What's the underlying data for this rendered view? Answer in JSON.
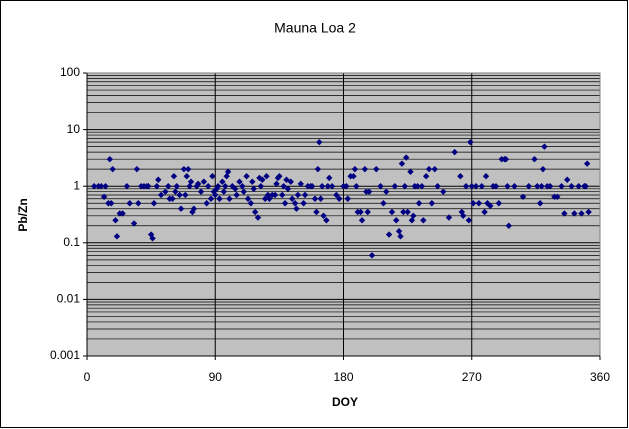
{
  "chart_data": {
    "type": "scatter",
    "title": "Mauna Loa 2",
    "x_label": "DOY",
    "y_label": "Pb/Zn",
    "xlim": [
      0,
      360
    ],
    "xticks": [
      0,
      90,
      180,
      270,
      360
    ],
    "ylim": [
      0.001,
      100
    ],
    "yticks": [
      0.001,
      0.01,
      0.1,
      1,
      10,
      100
    ],
    "log_y": true,
    "grid": true,
    "minor_grid": true,
    "series": [
      {
        "color": "#000080",
        "x": [
          5,
          8,
          10,
          12,
          13,
          15,
          16,
          17,
          18,
          20,
          21,
          23,
          25,
          28,
          30,
          33,
          35,
          36,
          38,
          40,
          42,
          43,
          45,
          46,
          47,
          49,
          50,
          52,
          55,
          57,
          58,
          60,
          61,
          62,
          63,
          65,
          66,
          68,
          69,
          70,
          71,
          72,
          73,
          74,
          75,
          77,
          78,
          80,
          82,
          84,
          85,
          87,
          88,
          89,
          90,
          91,
          92,
          93,
          95,
          96,
          97,
          98,
          99,
          100,
          102,
          104,
          105,
          107,
          109,
          110,
          112,
          113,
          115,
          116,
          117,
          118,
          120,
          121,
          122,
          123,
          125,
          126,
          127,
          128,
          130,
          132,
          133,
          134,
          135,
          137,
          138,
          139,
          140,
          141,
          143,
          144,
          146,
          147,
          148,
          150,
          152,
          153,
          155,
          157,
          158,
          160,
          161,
          162,
          163,
          164,
          165,
          166,
          168,
          169,
          170,
          172,
          175,
          177,
          180,
          182,
          183,
          185,
          187,
          188,
          189,
          190,
          192,
          193,
          195,
          196,
          197,
          198,
          200,
          203,
          206,
          208,
          210,
          212,
          214,
          216,
          217,
          219,
          220,
          221,
          222,
          223,
          224,
          225,
          227,
          228,
          229,
          230,
          232,
          233,
          235,
          236,
          238,
          240,
          242,
          244,
          246,
          250,
          254,
          258,
          262,
          263,
          264,
          266,
          268,
          269,
          270,
          271,
          273,
          275,
          277,
          279,
          280,
          281,
          283,
          285,
          287,
          289,
          291,
          293,
          294,
          295,
          296,
          300,
          306,
          310,
          314,
          316,
          318,
          319,
          320,
          321,
          323,
          325,
          328,
          330,
          333,
          335,
          337,
          340,
          342,
          345,
          347,
          349,
          350,
          351,
          352
        ],
        "values": [
          1,
          1,
          1,
          0.65,
          1,
          0.5,
          3,
          0.5,
          2,
          0.25,
          0.13,
          0.33,
          0.33,
          1,
          0.5,
          0.22,
          2,
          0.5,
          1,
          1,
          1,
          1,
          0.14,
          0.12,
          0.5,
          1,
          1.3,
          0.7,
          0.8,
          1,
          0.6,
          0.6,
          1.5,
          0.8,
          1,
          0.7,
          0.4,
          2,
          0.7,
          1.5,
          2,
          1,
          1.2,
          0.35,
          0.4,
          1,
          1.1,
          0.8,
          1.2,
          0.5,
          1,
          0.6,
          1.5,
          0.8,
          0.7,
          0.9,
          1,
          0.6,
          1.2,
          0.8,
          1,
          1.5,
          1.8,
          0.6,
          1,
          0.9,
          0.7,
          1.2,
          1,
          0.8,
          1.5,
          0.6,
          0.5,
          1.2,
          0.9,
          0.35,
          0.28,
          1.4,
          1,
          1.3,
          0.6,
          1.5,
          0.7,
          0.6,
          0.7,
          0.7,
          1.1,
          1.4,
          1.5,
          0.7,
          1,
          0.5,
          1.3,
          0.9,
          1.2,
          0.6,
          0.5,
          0.4,
          0.7,
          1.1,
          0.5,
          0.7,
          1,
          1,
          1,
          0.6,
          0.35,
          2,
          6,
          0.6,
          1,
          0.3,
          0.25,
          1,
          1.4,
          1,
          0.7,
          0.6,
          1,
          1,
          0.6,
          1.5,
          1.5,
          2,
          1,
          0.35,
          0.35,
          0.25,
          2,
          0.8,
          0.35,
          0.8,
          0.06,
          2,
          1,
          0.5,
          0.8,
          0.14,
          0.35,
          1,
          0.25,
          0.16,
          0.13,
          2.5,
          0.35,
          1,
          3.2,
          0.35,
          1.8,
          0.25,
          0.3,
          1,
          1,
          0.5,
          1,
          0.25,
          1.5,
          2,
          0.5,
          2,
          1,
          0.8,
          0.28,
          4,
          1.5,
          0.35,
          0.3,
          1,
          0.25,
          6,
          1,
          0.5,
          1,
          0.5,
          1,
          0.35,
          1.5,
          0.5,
          0.45,
          1,
          1,
          0.5,
          3,
          3,
          3,
          1,
          0.2,
          1,
          0.65,
          1,
          3,
          1,
          0.5,
          1,
          2,
          5,
          1,
          1,
          0.65,
          0.65,
          1,
          0.33,
          1.3,
          1,
          0.33,
          1,
          0.33,
          1,
          1,
          2.5,
          0.35
        ]
      }
    ]
  }
}
